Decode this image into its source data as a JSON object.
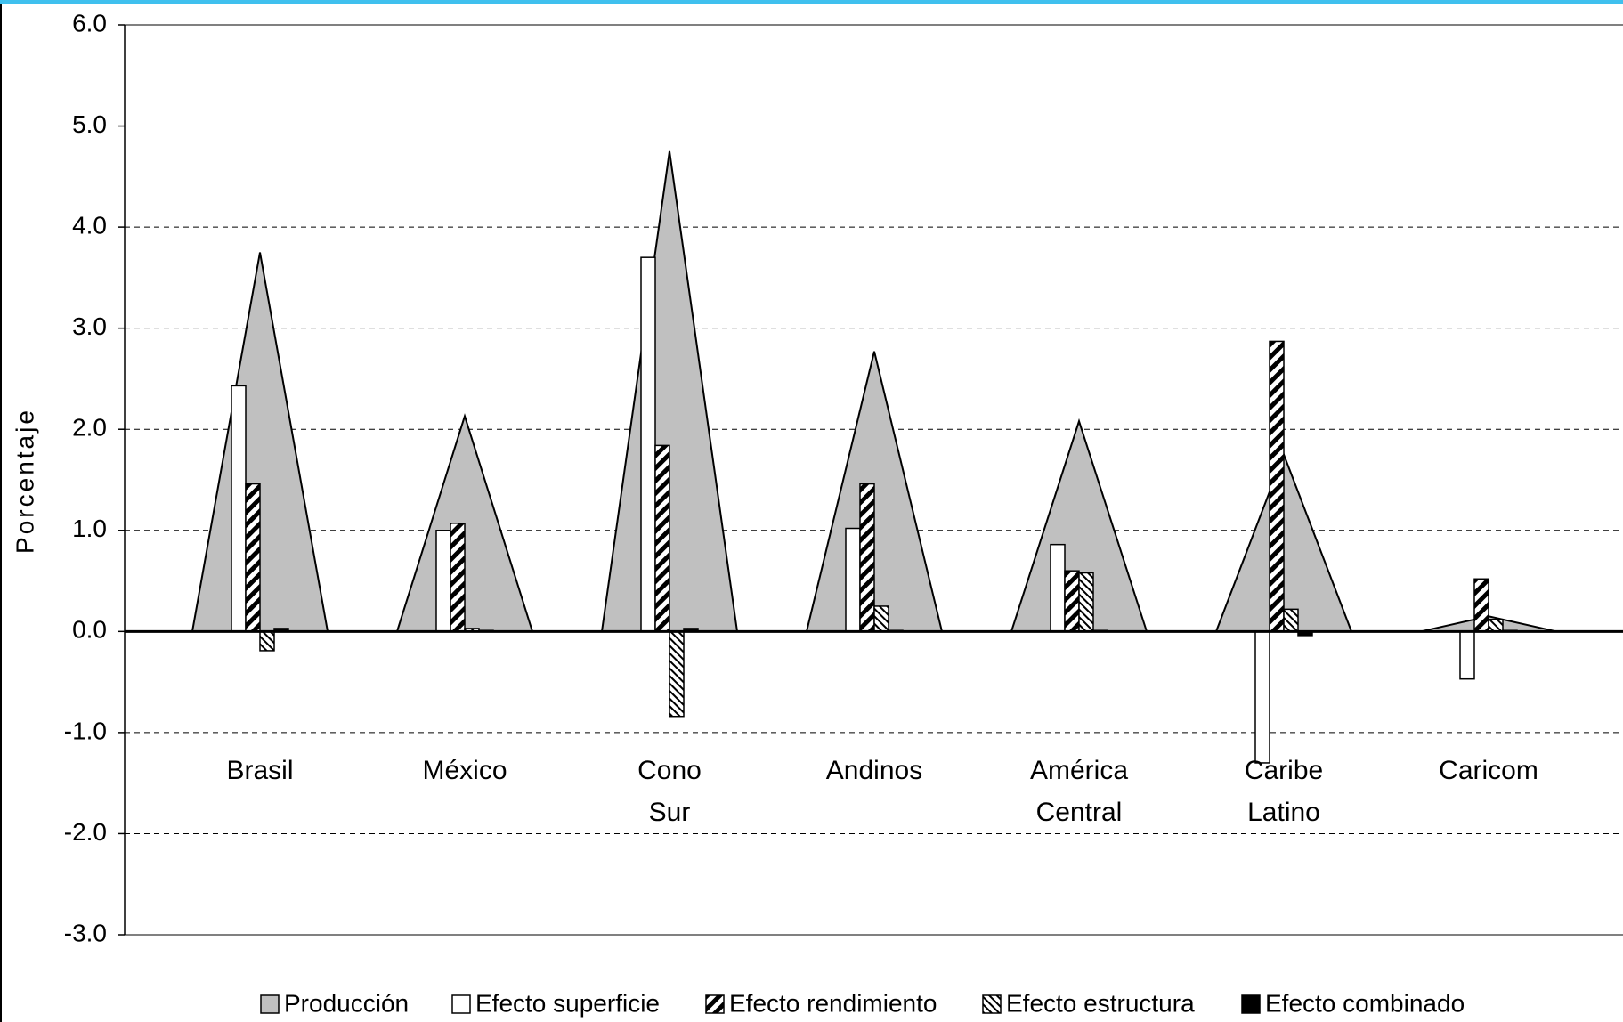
{
  "chart_data": {
    "type": "bar-area",
    "y_label": "Porcentaje",
    "categories": [
      "Brasil",
      "México",
      "Cono\nSur",
      "Andinos",
      "América\nCentral",
      "Caribe\nLatino",
      "Caricom"
    ],
    "series": [
      {
        "name": "Producción",
        "type": "area",
        "color": "#c0c0c0",
        "values": [
          3.75,
          2.13,
          4.75,
          2.77,
          2.08,
          1.75,
          0.15
        ]
      },
      {
        "name": "Efecto superficie",
        "type": "bar",
        "color": "#ffffff",
        "values": [
          2.43,
          1.0,
          3.7,
          1.02,
          0.86,
          -1.3,
          -0.47
        ]
      },
      {
        "name": "Efecto rendimiento",
        "type": "bar",
        "color": "#000000",
        "pattern": "wide-diagonal",
        "values": [
          1.46,
          1.07,
          1.84,
          1.46,
          0.6,
          2.87,
          0.52
        ]
      },
      {
        "name": "Efecto estructura",
        "type": "bar",
        "color": "#000000",
        "pattern": "thin-diagonal",
        "values": [
          -0.19,
          0.03,
          -0.84,
          0.25,
          0.58,
          0.22,
          0.12
        ]
      },
      {
        "name": "Efecto combinado",
        "type": "bar",
        "color": "#000000",
        "values": [
          0.03,
          0.01,
          0.03,
          0.01,
          0.01,
          -0.04,
          0.01
        ]
      }
    ],
    "ylim": [
      -3,
      6
    ],
    "yticks": [
      {
        "value": -3,
        "label": "-3.0"
      },
      {
        "value": -2,
        "label": "-2.0"
      },
      {
        "value": -1,
        "label": "-1.0"
      },
      {
        "value": 0,
        "label": "0.0"
      },
      {
        "value": 1,
        "label": "1.0"
      },
      {
        "value": 2,
        "label": "2.0"
      },
      {
        "value": 3,
        "label": "3.0"
      },
      {
        "value": 4,
        "label": "4.0"
      },
      {
        "value": 5,
        "label": "5.0"
      },
      {
        "value": 6,
        "label": "6.0"
      }
    ],
    "grid": true,
    "legend": "bottom"
  }
}
